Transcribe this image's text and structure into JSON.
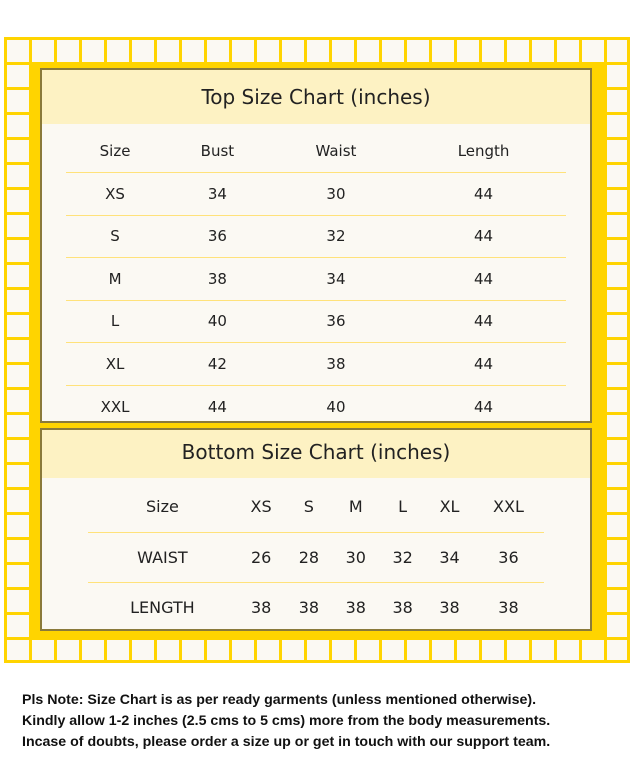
{
  "top_chart": {
    "title": "Top Size Chart (inches)",
    "headers": [
      "Size",
      "Bust",
      "Waist",
      "Length"
    ],
    "rows": [
      [
        "XS",
        "34",
        "30",
        "44"
      ],
      [
        "S",
        "36",
        "32",
        "44"
      ],
      [
        "M",
        "38",
        "34",
        "44"
      ],
      [
        "L",
        "40",
        "36",
        "44"
      ],
      [
        "XL",
        "42",
        "38",
        "44"
      ],
      [
        "XXL",
        "44",
        "40",
        "44"
      ]
    ]
  },
  "bottom_chart": {
    "title": "Bottom Size Chart (inches)",
    "headers": [
      "Size",
      "XS",
      "S",
      "M",
      "L",
      "XL",
      "XXL"
    ],
    "rows": [
      [
        "WAIST",
        "26",
        "28",
        "30",
        "32",
        "34",
        "36"
      ],
      [
        "LENGTH",
        "38",
        "38",
        "38",
        "38",
        "38",
        "38"
      ]
    ]
  },
  "note": [
    "Pls Note: Size Chart is as per ready garments (unless mentioned otherwise).",
    "Kindly allow 1-2 inches (2.5 cms to 5 cms) more from the body measurements.",
    "Incase of doubts, please order a size up or get in touch with our support team."
  ],
  "colors": {
    "grid": "#ffd400",
    "header_band": "#fdf2c3",
    "background": "#fbf9f3"
  }
}
